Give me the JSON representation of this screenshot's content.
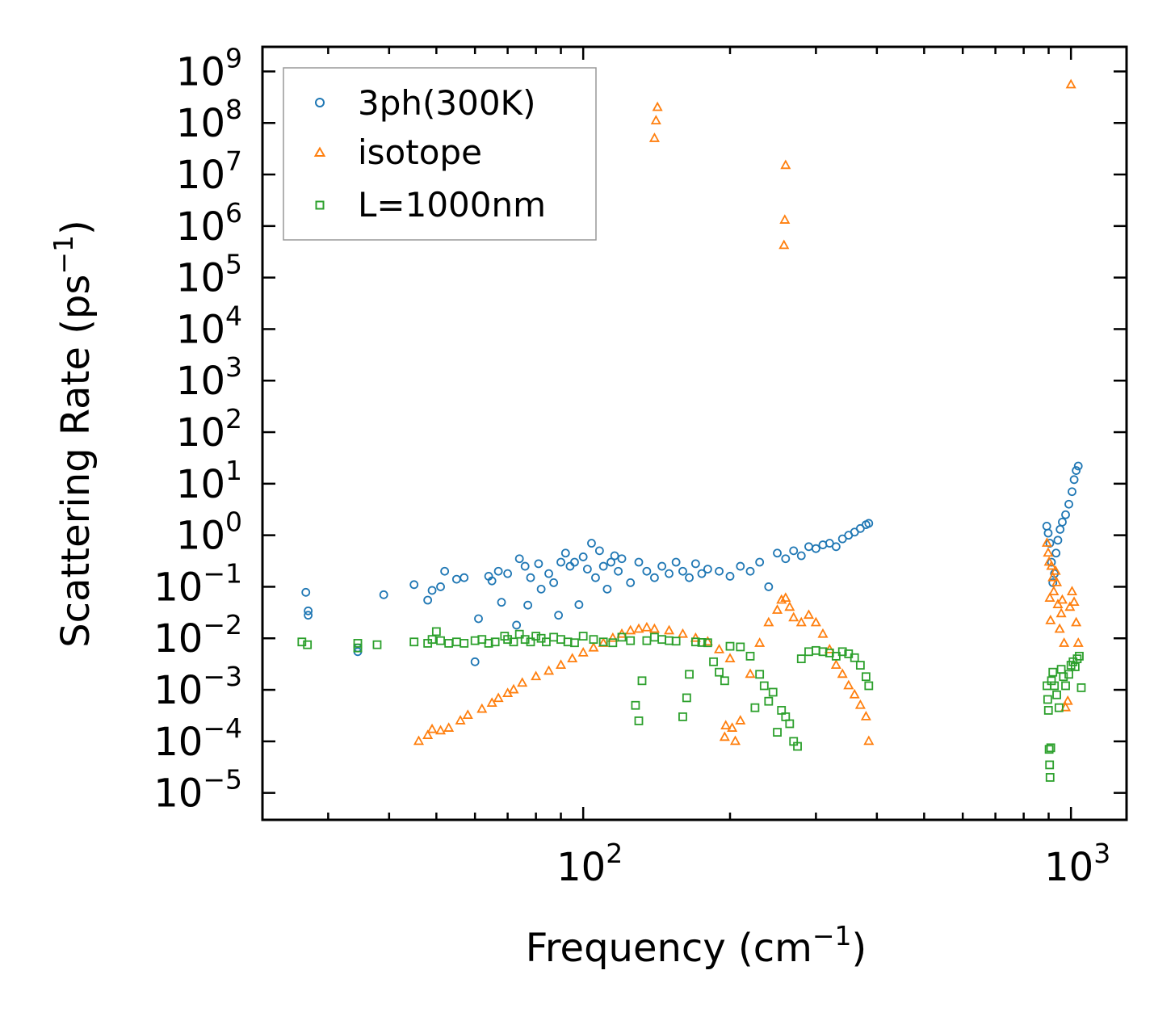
{
  "chart_data": {
    "type": "scatter",
    "title": "",
    "xlabel": "Frequency (cm⁻¹)",
    "xlabel_base": "Frequency (cm",
    "xlabel_exp": "−1",
    "xlabel_close": ")",
    "ylabel_base": "Scattering Rate (ps",
    "ylabel_exp": "−1",
    "ylabel_close": ")",
    "x_scale": "log",
    "y_scale": "log",
    "xlim": [
      22,
      1300
    ],
    "ylim": [
      3e-06,
      3000000000.0
    ],
    "x_ticks": [
      {
        "value": 100,
        "base": "10",
        "exp": "2"
      },
      {
        "value": 1000,
        "base": "10",
        "exp": "3"
      }
    ],
    "y_ticks": [
      {
        "value": 1e-05,
        "base": "10",
        "exp": "−5"
      },
      {
        "value": 0.0001,
        "base": "10",
        "exp": "−4"
      },
      {
        "value": 0.001,
        "base": "10",
        "exp": "−3"
      },
      {
        "value": 0.01,
        "base": "10",
        "exp": "−2"
      },
      {
        "value": 0.1,
        "base": "10",
        "exp": "−1"
      },
      {
        "value": 1,
        "base": "10",
        "exp": "0"
      },
      {
        "value": 10,
        "base": "10",
        "exp": "1"
      },
      {
        "value": 100,
        "base": "10",
        "exp": "2"
      },
      {
        "value": 1000,
        "base": "10",
        "exp": "3"
      },
      {
        "value": 10000,
        "base": "10",
        "exp": "4"
      },
      {
        "value": 100000,
        "base": "10",
        "exp": "5"
      },
      {
        "value": 1000000,
        "base": "10",
        "exp": "6"
      },
      {
        "value": 10000000,
        "base": "10",
        "exp": "7"
      },
      {
        "value": 100000000,
        "base": "10",
        "exp": "8"
      },
      {
        "value": 1000000000,
        "base": "10",
        "exp": "9"
      }
    ],
    "grid": false,
    "legend_position": "top-left",
    "series": [
      {
        "name": "3ph(300K)",
        "marker": "circle",
        "color": "#1f77b4",
        "points": [
          [
            27,
            0.078
          ],
          [
            27.3,
            0.034
          ],
          [
            27.3,
            0.028
          ],
          [
            34.5,
            0.0065
          ],
          [
            34.5,
            0.0055
          ],
          [
            39,
            0.07
          ],
          [
            45,
            0.11
          ],
          [
            48,
            0.055
          ],
          [
            49,
            0.085
          ],
          [
            51,
            0.1
          ],
          [
            52,
            0.2
          ],
          [
            55,
            0.14
          ],
          [
            57,
            0.15
          ],
          [
            60,
            0.0035
          ],
          [
            61,
            0.024
          ],
          [
            64,
            0.16
          ],
          [
            65,
            0.13
          ],
          [
            67,
            0.2
          ],
          [
            68,
            0.05
          ],
          [
            70,
            0.18
          ],
          [
            73,
            0.018
          ],
          [
            74,
            0.35
          ],
          [
            76,
            0.25
          ],
          [
            77,
            0.044
          ],
          [
            78,
            0.15
          ],
          [
            81,
            0.28
          ],
          [
            82,
            0.09
          ],
          [
            85,
            0.18
          ],
          [
            87,
            0.12
          ],
          [
            89,
            0.028
          ],
          [
            90,
            0.3
          ],
          [
            92,
            0.45
          ],
          [
            94,
            0.25
          ],
          [
            96,
            0.3
          ],
          [
            98,
            0.045
          ],
          [
            100,
            0.38
          ],
          [
            102,
            0.22
          ],
          [
            104,
            0.7
          ],
          [
            106,
            0.15
          ],
          [
            108,
            0.5
          ],
          [
            110,
            0.25
          ],
          [
            112,
            0.09
          ],
          [
            114,
            0.3
          ],
          [
            116,
            0.4
          ],
          [
            118,
            0.2
          ],
          [
            120,
            0.35
          ],
          [
            125,
            0.12
          ],
          [
            130,
            0.3
          ],
          [
            135,
            0.2
          ],
          [
            140,
            0.15
          ],
          [
            145,
            0.25
          ],
          [
            150,
            0.18
          ],
          [
            155,
            0.3
          ],
          [
            160,
            0.2
          ],
          [
            165,
            0.15
          ],
          [
            170,
            0.28
          ],
          [
            175,
            0.18
          ],
          [
            180,
            0.22
          ],
          [
            190,
            0.2
          ],
          [
            200,
            0.16
          ],
          [
            210,
            0.25
          ],
          [
            220,
            0.2
          ],
          [
            230,
            0.3
          ],
          [
            240,
            0.1
          ],
          [
            250,
            0.45
          ],
          [
            260,
            0.35
          ],
          [
            270,
            0.5
          ],
          [
            280,
            0.4
          ],
          [
            290,
            0.6
          ],
          [
            300,
            0.55
          ],
          [
            310,
            0.65
          ],
          [
            320,
            0.7
          ],
          [
            330,
            0.6
          ],
          [
            340,
            0.85
          ],
          [
            350,
            1.0
          ],
          [
            360,
            1.15
          ],
          [
            370,
            1.35
          ],
          [
            380,
            1.6
          ],
          [
            385,
            1.7
          ],
          [
            892,
            1.5
          ],
          [
            898,
            1.1
          ],
          [
            905,
            0.7
          ],
          [
            912,
            0.3
          ],
          [
            918,
            0.12
          ],
          [
            925,
            0.18
          ],
          [
            932,
            0.45
          ],
          [
            940,
            0.8
          ],
          [
            950,
            1.3
          ],
          [
            960,
            1.8
          ],
          [
            975,
            2.5
          ],
          [
            990,
            4.0
          ],
          [
            1005,
            7.0
          ],
          [
            1015,
            12.0
          ],
          [
            1025,
            18.0
          ],
          [
            1035,
            22.0
          ]
        ]
      },
      {
        "name": "isotope",
        "marker": "triangle",
        "color": "#ff7f0e",
        "points": [
          [
            46,
            0.0001
          ],
          [
            48,
            0.00013
          ],
          [
            49,
            0.00017
          ],
          [
            51,
            0.00016
          ],
          [
            53,
            0.00018
          ],
          [
            56,
            0.00025
          ],
          [
            58,
            0.00032
          ],
          [
            62,
            0.00042
          ],
          [
            65,
            0.00055
          ],
          [
            67,
            0.00068
          ],
          [
            70,
            0.00085
          ],
          [
            72,
            0.001
          ],
          [
            75,
            0.00135
          ],
          [
            80,
            0.0018
          ],
          [
            85,
            0.0023
          ],
          [
            90,
            0.003
          ],
          [
            95,
            0.004
          ],
          [
            100,
            0.0052
          ],
          [
            105,
            0.0065
          ],
          [
            110,
            0.008
          ],
          [
            115,
            0.01
          ],
          [
            120,
            0.012
          ],
          [
            125,
            0.014
          ],
          [
            130,
            0.015
          ],
          [
            135,
            0.016
          ],
          [
            140,
            0.015
          ],
          [
            150,
            0.014
          ],
          [
            160,
            0.012
          ],
          [
            170,
            0.01
          ],
          [
            180,
            0.0085
          ],
          [
            190,
            0.006
          ],
          [
            200,
            0.004
          ],
          [
            195,
            0.00012
          ],
          [
            196,
            0.0002
          ],
          [
            202,
            0.00018
          ],
          [
            205,
            0.0001
          ],
          [
            210,
            0.00025
          ],
          [
            220,
            0.002
          ],
          [
            230,
            0.008
          ],
          [
            240,
            0.02
          ],
          [
            250,
            0.035
          ],
          [
            255,
            0.055
          ],
          [
            260,
            0.06
          ],
          [
            265,
            0.04
          ],
          [
            270,
            0.025
          ],
          [
            280,
            0.02
          ],
          [
            290,
            0.028
          ],
          [
            300,
            0.02
          ],
          [
            310,
            0.012
          ],
          [
            320,
            0.006
          ],
          [
            330,
            0.003
          ],
          [
            340,
            0.002
          ],
          [
            350,
            0.0012
          ],
          [
            360,
            0.0008
          ],
          [
            370,
            0.0005
          ],
          [
            380,
            0.0003
          ],
          [
            385,
            0.0001
          ],
          [
            140,
            50000000
          ],
          [
            141,
            110000000
          ],
          [
            142,
            200000000
          ],
          [
            258,
            420000
          ],
          [
            259,
            1300000
          ],
          [
            260,
            15000000
          ],
          [
            1000,
            550000000
          ],
          [
            893,
            0.7
          ],
          [
            898,
            0.45
          ],
          [
            902,
            0.3
          ],
          [
            905,
            0.06
          ],
          [
            908,
            0.022
          ],
          [
            912,
            0.25
          ],
          [
            918,
            0.15
          ],
          [
            922,
            0.08
          ],
          [
            930,
            0.2
          ],
          [
            935,
            0.12
          ],
          [
            940,
            0.045
          ],
          [
            948,
            0.015
          ],
          [
            955,
            0.03
          ],
          [
            960,
            0.055
          ],
          [
            968,
            0.008
          ],
          [
            975,
            0.00045
          ],
          [
            985,
            0.0006
          ],
          [
            995,
            0.04
          ],
          [
            1005,
            0.08
          ],
          [
            1015,
            0.05
          ],
          [
            1025,
            0.02
          ],
          [
            1035,
            0.008
          ]
        ]
      },
      {
        "name": "L=1000nm",
        "marker": "square",
        "color": "#2ca02c",
        "points": [
          [
            26.5,
            0.0085
          ],
          [
            27.2,
            0.0075
          ],
          [
            34.5,
            0.008
          ],
          [
            34.5,
            0.0065
          ],
          [
            37.8,
            0.0075
          ],
          [
            45,
            0.0085
          ],
          [
            48,
            0.008
          ],
          [
            49,
            0.0095
          ],
          [
            50,
            0.0135
          ],
          [
            51,
            0.009
          ],
          [
            53,
            0.008
          ],
          [
            55,
            0.0085
          ],
          [
            57,
            0.008
          ],
          [
            60,
            0.009
          ],
          [
            62,
            0.0095
          ],
          [
            64,
            0.008
          ],
          [
            66,
            0.0085
          ],
          [
            69,
            0.011
          ],
          [
            70,
            0.0095
          ],
          [
            72,
            0.0085
          ],
          [
            74,
            0.012
          ],
          [
            76,
            0.0095
          ],
          [
            78,
            0.0085
          ],
          [
            80,
            0.011
          ],
          [
            82,
            0.01
          ],
          [
            84,
            0.0085
          ],
          [
            87,
            0.0105
          ],
          [
            90,
            0.0095
          ],
          [
            93,
            0.0085
          ],
          [
            96,
            0.0082
          ],
          [
            100,
            0.011
          ],
          [
            105,
            0.0095
          ],
          [
            110,
            0.0085
          ],
          [
            115,
            0.0082
          ],
          [
            120,
            0.0105
          ],
          [
            125,
            0.009
          ],
          [
            128,
            0.0005
          ],
          [
            130,
            0.00025
          ],
          [
            132,
            0.0015
          ],
          [
            135,
            0.009
          ],
          [
            140,
            0.0105
          ],
          [
            145,
            0.0095
          ],
          [
            150,
            0.009
          ],
          [
            155,
            0.0088
          ],
          [
            160,
            0.0003
          ],
          [
            163,
            0.0007
          ],
          [
            165,
            0.002
          ],
          [
            170,
            0.0085
          ],
          [
            175,
            0.0083
          ],
          [
            180,
            0.0082
          ],
          [
            185,
            0.0035
          ],
          [
            190,
            0.0022
          ],
          [
            195,
            0.0015
          ],
          [
            200,
            0.007
          ],
          [
            210,
            0.0068
          ],
          [
            220,
            0.0045
          ],
          [
            225,
            0.00045
          ],
          [
            230,
            0.002
          ],
          [
            235,
            0.0012
          ],
          [
            240,
            0.0006
          ],
          [
            245,
            0.0009
          ],
          [
            250,
            0.00015
          ],
          [
            255,
            0.0004
          ],
          [
            260,
            0.0003
          ],
          [
            265,
            0.00022
          ],
          [
            270,
            0.0001
          ],
          [
            275,
            8e-05
          ],
          [
            280,
            0.004
          ],
          [
            290,
            0.0055
          ],
          [
            300,
            0.0058
          ],
          [
            310,
            0.0055
          ],
          [
            320,
            0.0052
          ],
          [
            330,
            0.0045
          ],
          [
            340,
            0.0055
          ],
          [
            350,
            0.005
          ],
          [
            360,
            0.0042
          ],
          [
            370,
            0.003
          ],
          [
            380,
            0.0018
          ],
          [
            385,
            0.0012
          ],
          [
            893,
            0.0012
          ],
          [
            896,
            0.00065
          ],
          [
            899,
            0.0004
          ],
          [
            902,
            7e-05
          ],
          [
            904,
            3.5e-05
          ],
          [
            906,
            2e-05
          ],
          [
            909,
            7.5e-05
          ],
          [
            912,
            0.0015
          ],
          [
            918,
            0.0022
          ],
          [
            925,
            0.0012
          ],
          [
            935,
            0.0008
          ],
          [
            945,
            0.00045
          ],
          [
            955,
            0.0025
          ],
          [
            965,
            0.0018
          ],
          [
            975,
            0.0012
          ],
          [
            990,
            0.002
          ],
          [
            1000,
            0.003
          ],
          [
            1010,
            0.0035
          ],
          [
            1020,
            0.0028
          ],
          [
            1030,
            0.004
          ],
          [
            1040,
            0.0045
          ],
          [
            1050,
            0.0011
          ]
        ]
      }
    ]
  }
}
